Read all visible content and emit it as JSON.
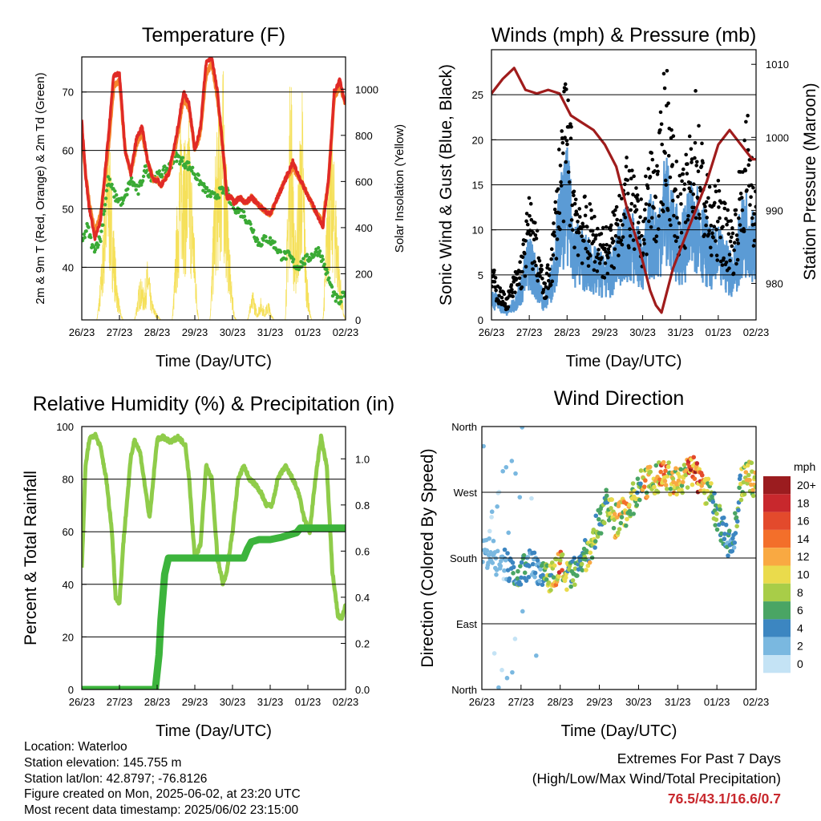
{
  "x_ticks": [
    "26/23",
    "27/23",
    "28/23",
    "29/23",
    "30/23",
    "31/23",
    "01/23",
    "02/23"
  ],
  "time_label": "Time (Day/UTC)",
  "colors": {
    "temp_2m": "#e02a26",
    "temp_9m": "#f5862d",
    "dewpoint": "#3aaa35",
    "solar": "#f5e05a",
    "wind": "#5b9bd5",
    "gust": "#000000",
    "pressure": "#a01c1c",
    "rh": "#8fcc4a",
    "precip": "#3cb43c"
  },
  "chart_data": [
    {
      "id": "temperature",
      "type": "line",
      "title": "Temperature (F)",
      "xlabel": "Time (Day/UTC)",
      "ylabel": "2m & 9m T (Red, Orange) & 2m Td (Green)",
      "ylabel_right": "Solar Insolation (Yellow)",
      "ylim": [
        31,
        76
      ],
      "y_ticks": [
        40,
        50,
        60,
        70
      ],
      "ylim_right": [
        0,
        1140
      ],
      "y_ticks_right": [
        0,
        200,
        400,
        600,
        800,
        1000
      ],
      "grid": true,
      "series": [
        {
          "key": "temp_2m",
          "x": [
            0,
            0.1,
            0.2,
            0.35,
            0.5,
            0.7,
            0.85,
            1.0,
            1.15,
            1.3,
            1.45,
            1.6,
            1.75,
            1.9,
            2.0,
            2.1,
            2.3,
            2.5,
            2.7,
            2.85,
            3.0,
            3.15,
            3.3,
            3.45,
            3.6,
            3.75,
            3.85,
            3.95,
            4.05,
            4.2,
            4.35,
            4.5,
            4.65,
            4.8,
            5.0,
            5.2,
            5.4,
            5.6,
            5.8,
            5.95,
            6.1,
            6.25,
            6.4,
            6.55,
            6.7,
            6.85,
            7.0
          ],
          "values": [
            65,
            56,
            50,
            45,
            48,
            62,
            73,
            73,
            60,
            56,
            62,
            64,
            58,
            55,
            55,
            54,
            56,
            62,
            70,
            68,
            60,
            64,
            75,
            76,
            70,
            60,
            52,
            52,
            51,
            52,
            51,
            52,
            51,
            50,
            49,
            52,
            55,
            58,
            55,
            53,
            51,
            49,
            47,
            55,
            70,
            72,
            68
          ]
        },
        {
          "key": "temp_9m",
          "x": [
            0,
            0.1,
            0.2,
            0.35,
            0.5,
            0.7,
            0.85,
            1.0,
            1.15,
            1.3,
            1.45,
            1.6,
            1.75,
            1.9,
            2.0,
            2.1,
            2.3,
            2.5,
            2.7,
            2.85,
            3.0,
            3.15,
            3.3,
            3.45,
            3.6,
            3.75,
            3.85,
            3.95,
            4.05,
            4.2,
            4.35,
            4.5,
            4.65,
            4.8,
            5.0,
            5.2,
            5.4,
            5.6,
            5.8,
            5.95,
            6.1,
            6.25,
            6.4,
            6.55,
            6.7,
            6.85,
            7.0
          ],
          "values": [
            64,
            56,
            51,
            46,
            49,
            60,
            71,
            72,
            60,
            56,
            61,
            63,
            58,
            55,
            55,
            54,
            56,
            61,
            69,
            67,
            60,
            63,
            73,
            75,
            69,
            60,
            52,
            52,
            51,
            52,
            51,
            52,
            51,
            50,
            49,
            52,
            55,
            57,
            55,
            53,
            51,
            49,
            48,
            55,
            69,
            71,
            68
          ]
        },
        {
          "key": "dewpoint",
          "x": [
            0,
            0.15,
            0.3,
            0.5,
            0.7,
            0.9,
            1.1,
            1.3,
            1.5,
            1.7,
            1.9,
            2.1,
            2.3,
            2.5,
            2.7,
            2.9,
            3.1,
            3.3,
            3.5,
            3.7,
            3.85,
            3.95,
            4.1,
            4.3,
            4.5,
            4.7,
            4.9,
            5.1,
            5.3,
            5.5,
            5.7,
            5.9,
            6.1,
            6.3,
            6.5,
            6.7,
            6.85,
            7.0
          ],
          "values": [
            44,
            47,
            43,
            45,
            55,
            52,
            51,
            55,
            53,
            57,
            55,
            56,
            57,
            59,
            58,
            57,
            55,
            53,
            52,
            53,
            53,
            51,
            50,
            49,
            47,
            44,
            45,
            44,
            42,
            42,
            40,
            41,
            42,
            43,
            39,
            35,
            34,
            36
          ]
        },
        {
          "key": "solar",
          "axis": "right",
          "x": [
            0,
            0.4,
            0.45,
            0.55,
            0.62,
            0.7,
            0.78,
            0.86,
            0.95,
            1.05,
            1.1,
            1.4,
            1.45,
            1.55,
            1.65,
            1.75,
            1.85,
            1.95,
            2.05,
            2.1,
            2.4,
            2.45,
            2.55,
            2.65,
            2.75,
            2.85,
            2.95,
            3.05,
            3.1,
            3.4,
            3.45,
            3.55,
            3.65,
            3.75,
            3.85,
            3.95,
            4.05,
            4.1,
            4.4,
            4.45,
            4.55,
            4.65,
            4.75,
            4.85,
            4.95,
            5.05,
            5.1,
            5.4,
            5.45,
            5.55,
            5.65,
            5.75,
            5.85,
            5.95,
            6.05,
            6.1,
            6.4,
            6.45,
            6.55,
            6.65,
            6.75,
            6.85,
            6.95,
            7.0
          ],
          "values": [
            0,
            0,
            80,
            300,
            650,
            780,
            600,
            350,
            120,
            20,
            0,
            0,
            60,
            180,
            120,
            250,
            90,
            40,
            10,
            0,
            0,
            150,
            550,
            900,
            700,
            820,
            500,
            120,
            0,
            0,
            200,
            700,
            850,
            1020,
            600,
            200,
            20,
            0,
            0,
            60,
            120,
            30,
            90,
            40,
            80,
            20,
            0,
            0,
            400,
            1120,
            300,
            600,
            950,
            250,
            40,
            0,
            0,
            200,
            700,
            750,
            500,
            200,
            30,
            0
          ]
        }
      ]
    },
    {
      "id": "winds",
      "type": "scatter",
      "title": "Winds (mph) & Pressure (mb)",
      "xlabel": "Time (Day/UTC)",
      "ylabel": "Sonic Wind & Gust (Blue, Black)",
      "ylabel_right": "Station Pressure (Maroon)",
      "ylim": [
        0,
        30
      ],
      "y_ticks": [
        0,
        5,
        10,
        15,
        20,
        25
      ],
      "ylim_right": [
        975,
        1012
      ],
      "y_ticks_right": [
        980,
        990,
        1000,
        1010
      ],
      "grid": true,
      "series": [
        {
          "key": "gust",
          "x": [
            0,
            0.2,
            0.4,
            0.6,
            0.8,
            1.0,
            1.2,
            1.4,
            1.6,
            1.8,
            2.0,
            2.2,
            2.4,
            2.6,
            2.8,
            3.0,
            3.2,
            3.4,
            3.6,
            3.8,
            4.0,
            4.2,
            4.4,
            4.6,
            4.8,
            5.0,
            5.2,
            5.4,
            5.6,
            5.8,
            6.0,
            6.2,
            6.4,
            6.6,
            6.8,
            7.0
          ],
          "values": [
            5,
            3,
            2,
            4,
            6,
            11,
            8,
            3,
            7,
            16,
            22,
            13,
            11,
            10,
            9,
            8,
            9,
            13,
            14,
            12,
            10,
            16,
            14,
            24,
            16,
            12,
            15,
            20,
            15,
            11,
            12,
            10,
            9,
            14,
            19,
            13
          ]
        },
        {
          "key": "wind",
          "x": [
            0,
            0.2,
            0.4,
            0.6,
            0.8,
            1.0,
            1.2,
            1.4,
            1.6,
            1.8,
            2.0,
            2.2,
            2.4,
            2.6,
            2.8,
            3.0,
            3.2,
            3.4,
            3.6,
            3.8,
            4.0,
            4.2,
            4.4,
            4.6,
            4.8,
            5.0,
            5.2,
            5.4,
            5.6,
            5.8,
            6.0,
            6.2,
            6.4,
            6.6,
            6.8,
            7.0
          ],
          "values": [
            3,
            2,
            1,
            2,
            4,
            8,
            5,
            2,
            5,
            12,
            15,
            9,
            8,
            7,
            6,
            6,
            6,
            9,
            10,
            9,
            7,
            11,
            10,
            15,
            11,
            9,
            11,
            13,
            10,
            8,
            8,
            7,
            6,
            10,
            12,
            9
          ]
        },
        {
          "key": "pressure",
          "axis": "right",
          "type": "line",
          "x": [
            0,
            0.3,
            0.6,
            0.9,
            1.2,
            1.5,
            1.8,
            2.1,
            2.4,
            2.7,
            3.0,
            3.3,
            3.6,
            3.9,
            4.2,
            4.35,
            4.5,
            4.8,
            5.1,
            5.4,
            5.7,
            6.0,
            6.3,
            6.6,
            6.9,
            7.0
          ],
          "values": [
            1006,
            1008,
            1009.5,
            1006.5,
            1006,
            1006.5,
            1006,
            1003,
            1002,
            1001,
            999,
            996,
            990,
            985,
            979,
            977,
            976,
            982,
            986,
            990,
            994,
            999,
            1001,
            999,
            997,
            997
          ]
        }
      ]
    },
    {
      "id": "humidity",
      "type": "line",
      "title": "Relative Humidity (%) & Precipitation (in)",
      "xlabel": "Time (Day/UTC)",
      "ylabel": "Percent & Total Rainfall",
      "ylim": [
        0,
        100
      ],
      "y_ticks": [
        0,
        20,
        40,
        60,
        80,
        100
      ],
      "ylim_right": [
        0,
        1.14
      ],
      "y_ticks_right": [
        "0.0",
        "0.2",
        "0.4",
        "0.6",
        "0.8",
        "1.0"
      ],
      "grid": true,
      "series": [
        {
          "key": "rh",
          "x": [
            0,
            0.1,
            0.2,
            0.35,
            0.5,
            0.65,
            0.8,
            0.9,
            1.0,
            1.1,
            1.3,
            1.4,
            1.55,
            1.7,
            1.8,
            1.9,
            2.0,
            2.15,
            2.35,
            2.55,
            2.75,
            2.85,
            3.0,
            3.15,
            3.3,
            3.45,
            3.6,
            3.75,
            3.85,
            4.0,
            4.15,
            4.3,
            4.45,
            4.6,
            4.75,
            4.9,
            5.05,
            5.2,
            5.4,
            5.6,
            5.75,
            5.9,
            6.05,
            6.2,
            6.35,
            6.5,
            6.65,
            6.8,
            6.9,
            7.0
          ],
          "values": [
            46,
            85,
            95,
            97,
            92,
            80,
            60,
            35,
            33,
            55,
            88,
            95,
            90,
            75,
            65,
            80,
            95,
            96,
            94,
            96,
            93,
            80,
            50,
            55,
            85,
            80,
            50,
            40,
            45,
            60,
            80,
            85,
            80,
            78,
            75,
            70,
            70,
            80,
            85,
            80,
            75,
            65,
            60,
            80,
            96,
            85,
            45,
            28,
            27,
            32
          ]
        },
        {
          "key": "precip",
          "axis": "right",
          "x": [
            0,
            1.3,
            1.95,
            2.05,
            2.1,
            2.2,
            2.3,
            2.5,
            2.75,
            3.0,
            3.5,
            3.9,
            4.1,
            4.3,
            4.4,
            4.5,
            4.7,
            5.0,
            5.3,
            5.5,
            5.7,
            5.8,
            6.0,
            6.5,
            7.0
          ],
          "values": [
            0,
            0,
            0,
            0.15,
            0.3,
            0.5,
            0.57,
            0.57,
            0.57,
            0.57,
            0.57,
            0.57,
            0.57,
            0.57,
            0.61,
            0.64,
            0.65,
            0.65,
            0.66,
            0.67,
            0.68,
            0.7,
            0.7,
            0.7,
            0.7
          ]
        }
      ]
    },
    {
      "id": "direction",
      "type": "scatter",
      "title": "Wind Direction",
      "xlabel": "Time (Day/UTC)",
      "ylabel": "Direction (Colored By Speed)",
      "y_ticks": [
        "North",
        "East",
        "South",
        "West",
        "North"
      ],
      "ylim": [
        0,
        360
      ],
      "colorbar": {
        "unit": "mph",
        "labels": [
          "20+",
          "18",
          "16",
          "14",
          "12",
          "10",
          "8",
          "6",
          "4",
          "2",
          "0"
        ],
        "colors": [
          "#9b1c1f",
          "#c8282d",
          "#e34a2c",
          "#f36f2a",
          "#f9a942",
          "#eadb4c",
          "#a8cd48",
          "#4aa564",
          "#3c86c1",
          "#7ab8e0",
          "#c4e3f5"
        ]
      },
      "series": [
        {
          "name": "direction",
          "x": [
            0,
            0.2,
            0.4,
            0.6,
            0.8,
            1.0,
            1.2,
            1.4,
            1.6,
            1.8,
            2.0,
            2.2,
            2.4,
            2.6,
            2.8,
            3.0,
            3.2,
            3.4,
            3.6,
            3.8,
            4.0,
            4.2,
            4.4,
            4.6,
            4.8,
            5.0,
            5.2,
            5.4,
            5.6,
            5.8,
            6.0,
            6.2,
            6.4,
            6.6,
            6.8,
            7.0
          ],
          "values": [
            180,
            190,
            175,
            170,
            165,
            160,
            175,
            165,
            160,
            155,
            170,
            150,
            160,
            180,
            200,
            230,
            255,
            230,
            240,
            255,
            275,
            285,
            280,
            300,
            290,
            280,
            295,
            300,
            285,
            270,
            240,
            210,
            195,
            280,
            290,
            285
          ],
          "speeds": [
            2,
            3,
            2,
            4,
            5,
            6,
            4,
            3,
            6,
            10,
            14,
            8,
            7,
            6,
            10,
            6,
            8,
            10,
            12,
            9,
            8,
            12,
            10,
            16,
            12,
            9,
            12,
            18,
            14,
            8,
            6,
            5,
            4,
            8,
            12,
            10
          ]
        }
      ]
    }
  ],
  "footer": {
    "location": "Location: Waterloo",
    "elevation": "Station elevation: 145.755 m",
    "latlon": "Station lat/lon: 42.8797; -76.8126",
    "created": "Figure created on Mon, 2025-06-02, at 23:20 UTC",
    "recent": "Most recent data timestamp: 2025/06/02 23:15:00",
    "extremes_title": "Extremes For Past 7 Days",
    "extremes_subtitle": "(High/Low/Max Wind/Total Precipitation)",
    "extremes_values": "76.5/43.1/16.6/0.7"
  }
}
